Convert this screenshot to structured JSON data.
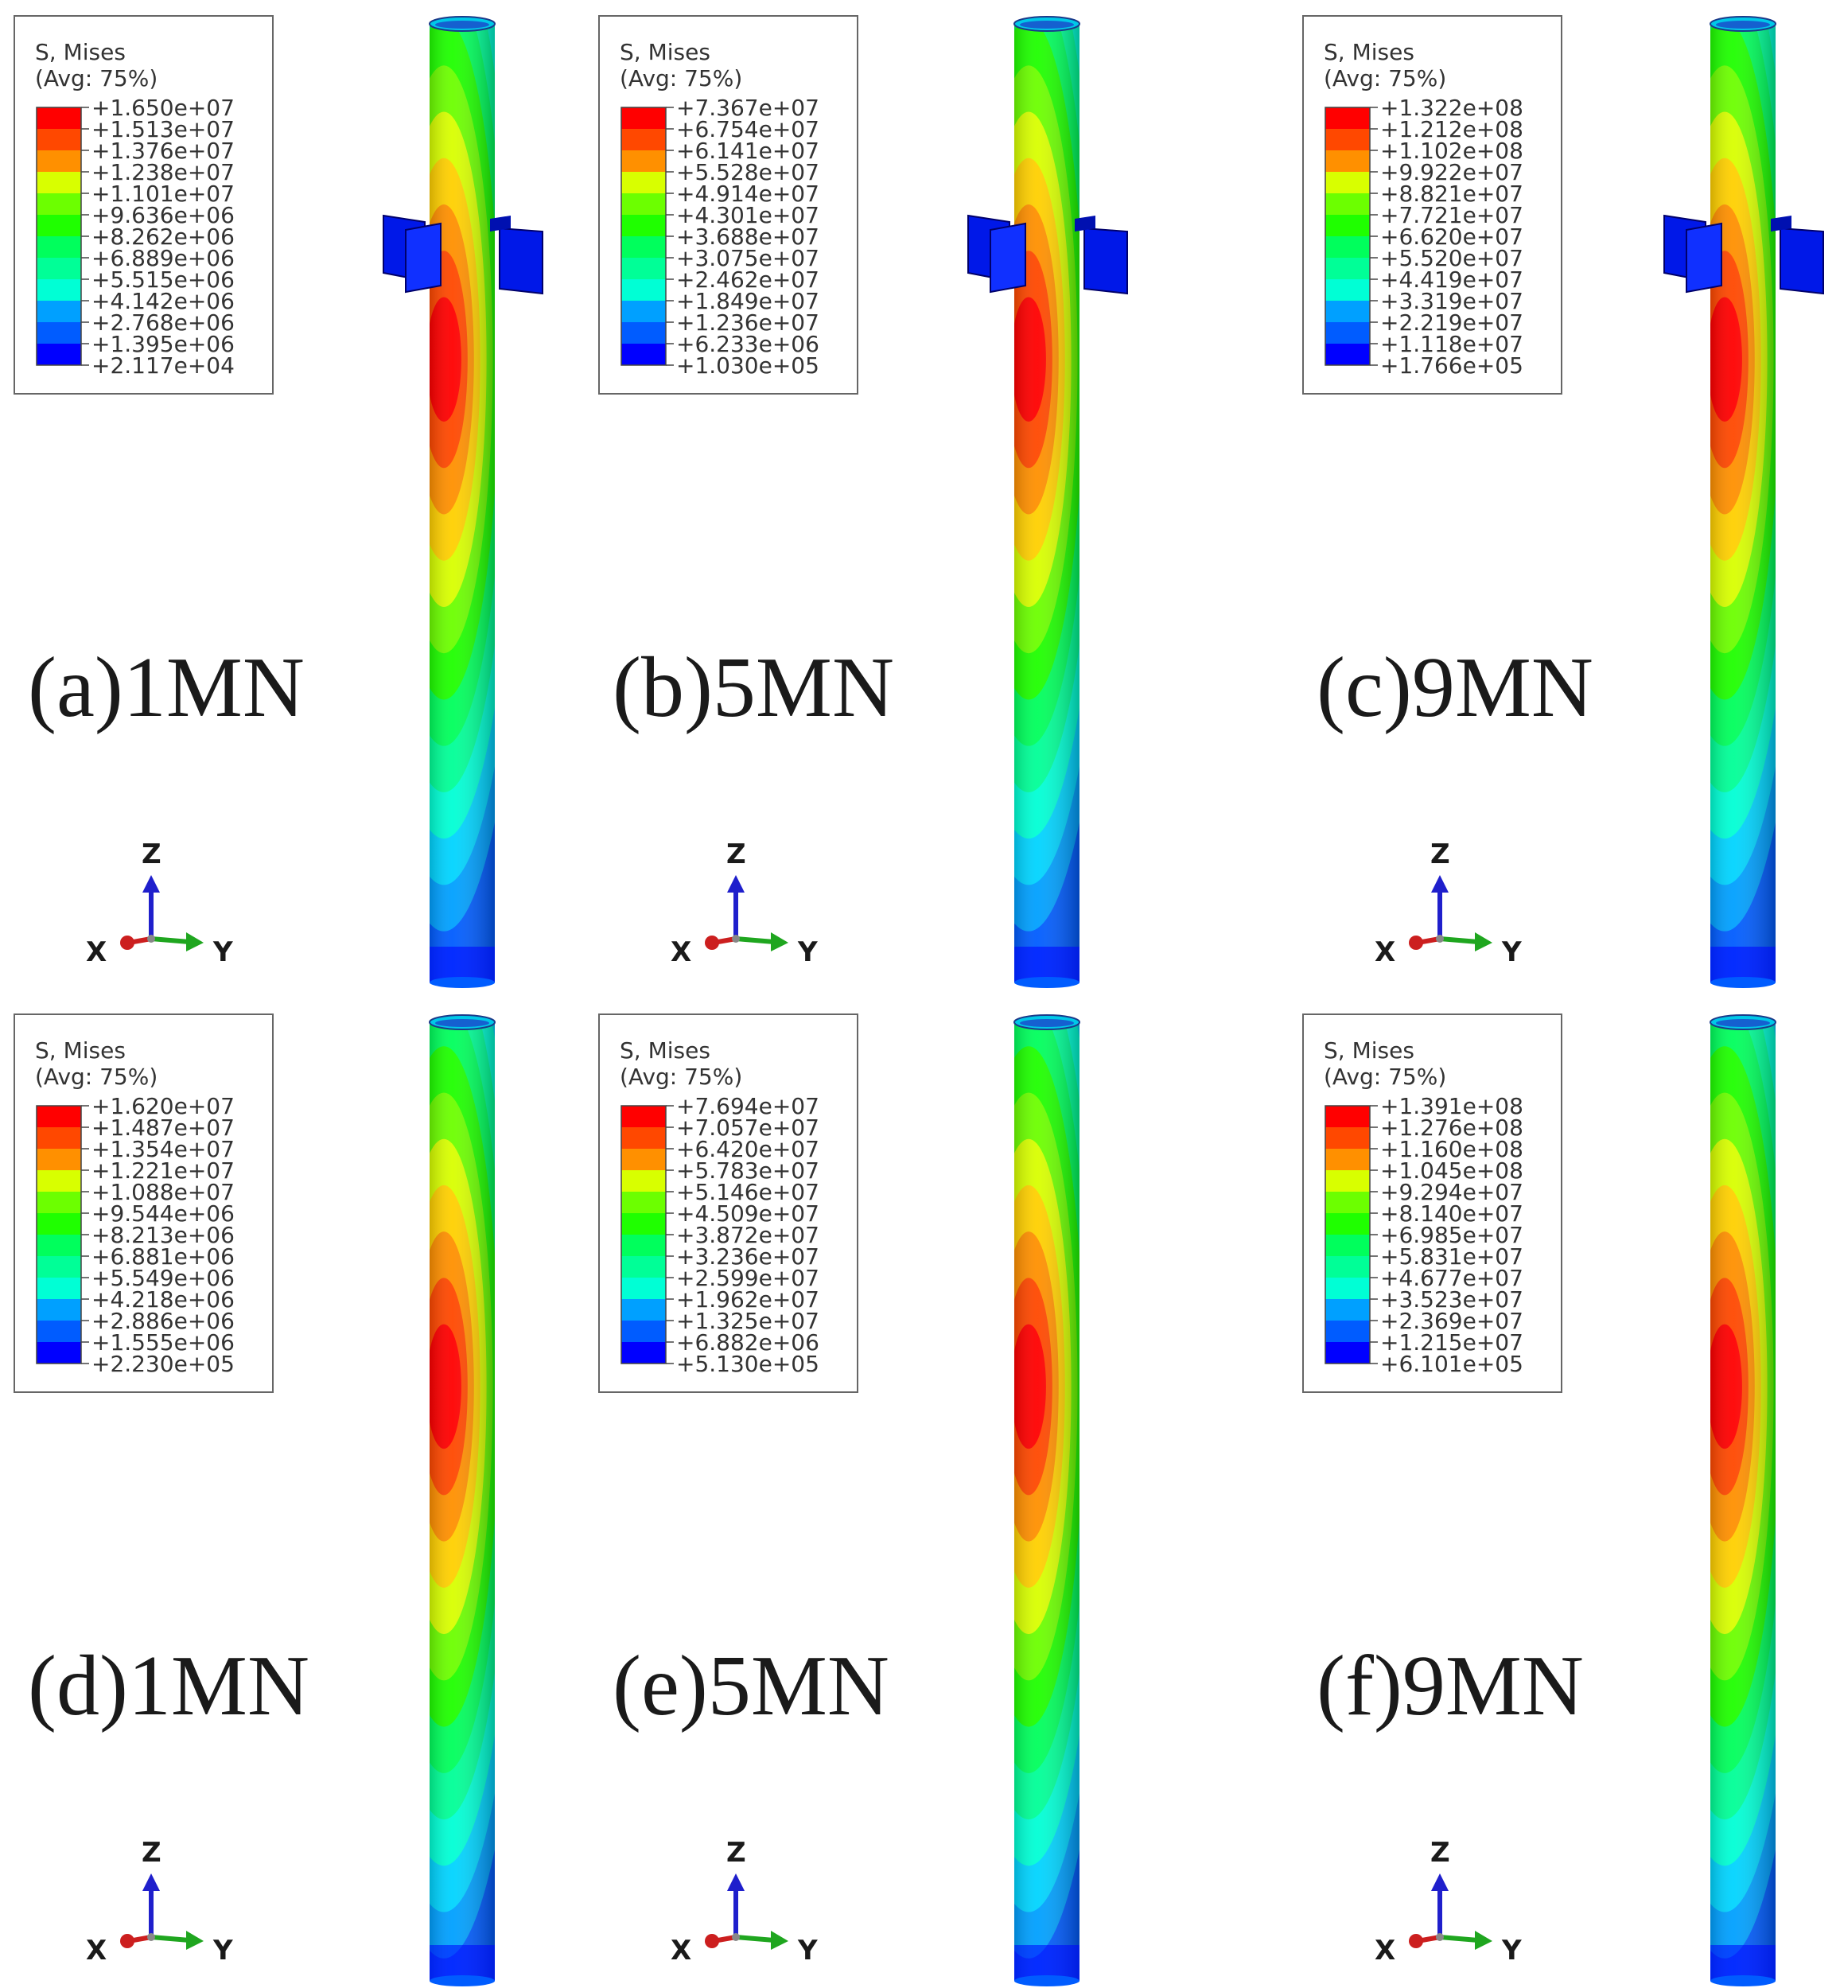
{
  "colors": {
    "contour": [
      "#0000ff",
      "#005cff",
      "#00a0ff",
      "#00d4ff",
      "#00ffd5",
      "#00ff97",
      "#00ff5c",
      "#1fff00",
      "#6cff00",
      "#d8ff00",
      "#ffd000",
      "#ff9000",
      "#ff4800",
      "#ff0000"
    ],
    "axis_x": "#cc1f1f",
    "axis_y": "#1fa61f",
    "axis_z": "#1f1fcc",
    "legend_border": "#666666"
  },
  "panels": [
    {
      "id": "a",
      "label": "(a)1MN",
      "has_plates": true,
      "legend": {
        "title": "S, Mises",
        "subtitle": "(Avg: 75%)",
        "values": [
          "+1.650e+07",
          "+1.513e+07",
          "+1.376e+07",
          "+1.238e+07",
          "+1.101e+07",
          "+9.636e+06",
          "+8.262e+06",
          "+6.889e+06",
          "+5.515e+06",
          "+4.142e+06",
          "+2.768e+06",
          "+1.395e+06",
          "+2.117e+04"
        ]
      },
      "triad": {
        "x": "X",
        "y": "Y",
        "z": "Z"
      }
    },
    {
      "id": "b",
      "label": "(b)5MN",
      "has_plates": true,
      "legend": {
        "title": "S, Mises",
        "subtitle": "(Avg: 75%)",
        "values": [
          "+7.367e+07",
          "+6.754e+07",
          "+6.141e+07",
          "+5.528e+07",
          "+4.914e+07",
          "+4.301e+07",
          "+3.688e+07",
          "+3.075e+07",
          "+2.462e+07",
          "+1.849e+07",
          "+1.236e+07",
          "+6.233e+06",
          "+1.030e+05"
        ]
      },
      "triad": {
        "x": "X",
        "y": "Y",
        "z": "Z"
      }
    },
    {
      "id": "c",
      "label": "(c)9MN",
      "has_plates": true,
      "legend": {
        "title": "S, Mises",
        "subtitle": "(Avg: 75%)",
        "values": [
          "+1.322e+08",
          "+1.212e+08",
          "+1.102e+08",
          "+9.922e+07",
          "+8.821e+07",
          "+7.721e+07",
          "+6.620e+07",
          "+5.520e+07",
          "+4.419e+07",
          "+3.319e+07",
          "+2.219e+07",
          "+1.118e+07",
          "+1.766e+05"
        ]
      },
      "triad": {
        "x": "X",
        "y": "Y",
        "z": "Z"
      }
    },
    {
      "id": "d",
      "label": "(d)1MN",
      "has_plates": false,
      "legend": {
        "title": "S, Mises",
        "subtitle": "(Avg: 75%)",
        "values": [
          "+1.620e+07",
          "+1.487e+07",
          "+1.354e+07",
          "+1.221e+07",
          "+1.088e+07",
          "+9.544e+06",
          "+8.213e+06",
          "+6.881e+06",
          "+5.549e+06",
          "+4.218e+06",
          "+2.886e+06",
          "+1.555e+06",
          "+2.230e+05"
        ]
      },
      "triad": {
        "x": "X",
        "y": "Y",
        "z": "Z"
      }
    },
    {
      "id": "e",
      "label": "(e)5MN",
      "has_plates": false,
      "legend": {
        "title": "S, Mises",
        "subtitle": "(Avg: 75%)",
        "values": [
          "+7.694e+07",
          "+7.057e+07",
          "+6.420e+07",
          "+5.783e+07",
          "+5.146e+07",
          "+4.509e+07",
          "+3.872e+07",
          "+3.236e+07",
          "+2.599e+07",
          "+1.962e+07",
          "+1.325e+07",
          "+6.882e+06",
          "+5.130e+05"
        ]
      },
      "triad": {
        "x": "X",
        "y": "Y",
        "z": "Z"
      }
    },
    {
      "id": "f",
      "label": "(f)9MN",
      "has_plates": false,
      "legend": {
        "title": "S, Mises",
        "subtitle": "(Avg: 75%)",
        "values": [
          "+1.391e+08",
          "+1.276e+08",
          "+1.160e+08",
          "+1.045e+08",
          "+9.294e+07",
          "+8.140e+07",
          "+6.985e+07",
          "+5.831e+07",
          "+4.677e+07",
          "+3.523e+07",
          "+2.369e+07",
          "+1.215e+07",
          "+6.101e+05"
        ]
      },
      "triad": {
        "x": "X",
        "y": "Y",
        "z": "Z"
      }
    }
  ]
}
